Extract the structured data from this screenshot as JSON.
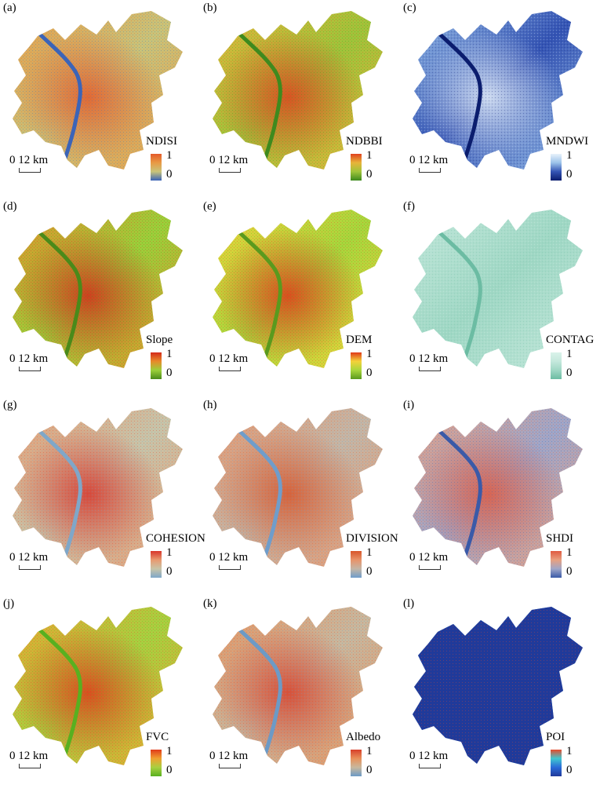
{
  "scale_label": "0  12 km",
  "legend_max": "1",
  "legend_min": "0",
  "palettes": {
    "ndisi": [
      "#3b64b8",
      "#c8c47a",
      "#e89a45",
      "#e45a2a"
    ],
    "ndbbi": [
      "#3e8a1e",
      "#9fc43a",
      "#e8b43a",
      "#e0421f"
    ],
    "mndwi": [
      "#0b1d6e",
      "#3454b4",
      "#9cc3ea",
      "#e8f2fb"
    ],
    "slope": [
      "#4a8a1a",
      "#9bd03a",
      "#e88a2a",
      "#d42a1a"
    ],
    "dem": [
      "#5a9a1e",
      "#a8d63c",
      "#f4d23a",
      "#e03a1a"
    ],
    "contag": [
      "#6cbca3",
      "#9fd7c4",
      "#c4e8dc",
      "#daf2ea"
    ],
    "cohesion": [
      "#7fa7c9",
      "#c8c4a8",
      "#e89a70",
      "#d8352a"
    ],
    "division": [
      "#6f9dcb",
      "#c4b6a6",
      "#e8946a",
      "#d8552a"
    ],
    "shdi": [
      "#3a5aa8",
      "#a0a6c8",
      "#e8a080",
      "#e05a40"
    ],
    "fvc": [
      "#58b020",
      "#a8d040",
      "#f0a030",
      "#e03a1a"
    ],
    "albedo": [
      "#6c9ac6",
      "#c8b89e",
      "#e8905a",
      "#d8402a"
    ],
    "poi": [
      "#203a9a",
      "#2a6ad8",
      "#40c8d0",
      "#e84a2a"
    ]
  },
  "panels": [
    {
      "letter": "(a)",
      "index_name": "NDISI",
      "palette": "ndisi"
    },
    {
      "letter": "(b)",
      "index_name": "NDBBI",
      "palette": "ndbbi"
    },
    {
      "letter": "(c)",
      "index_name": "MNDWI",
      "palette": "mndwi"
    },
    {
      "letter": "(d)",
      "index_name": "Slope",
      "palette": "slope"
    },
    {
      "letter": "(e)",
      "index_name": "DEM",
      "palette": "dem"
    },
    {
      "letter": "(f)",
      "index_name": "CONTAG",
      "palette": "contag"
    },
    {
      "letter": "(g)",
      "index_name": "COHESION",
      "palette": "cohesion"
    },
    {
      "letter": "(h)",
      "index_name": "DIVISION",
      "palette": "division"
    },
    {
      "letter": "(i)",
      "index_name": "SHDI",
      "palette": "shdi"
    },
    {
      "letter": "(j)",
      "index_name": "FVC",
      "palette": "fvc"
    },
    {
      "letter": "(k)",
      "index_name": "Albedo",
      "palette": "albedo"
    },
    {
      "letter": "(l)",
      "index_name": "POI",
      "palette": "poi"
    }
  ]
}
